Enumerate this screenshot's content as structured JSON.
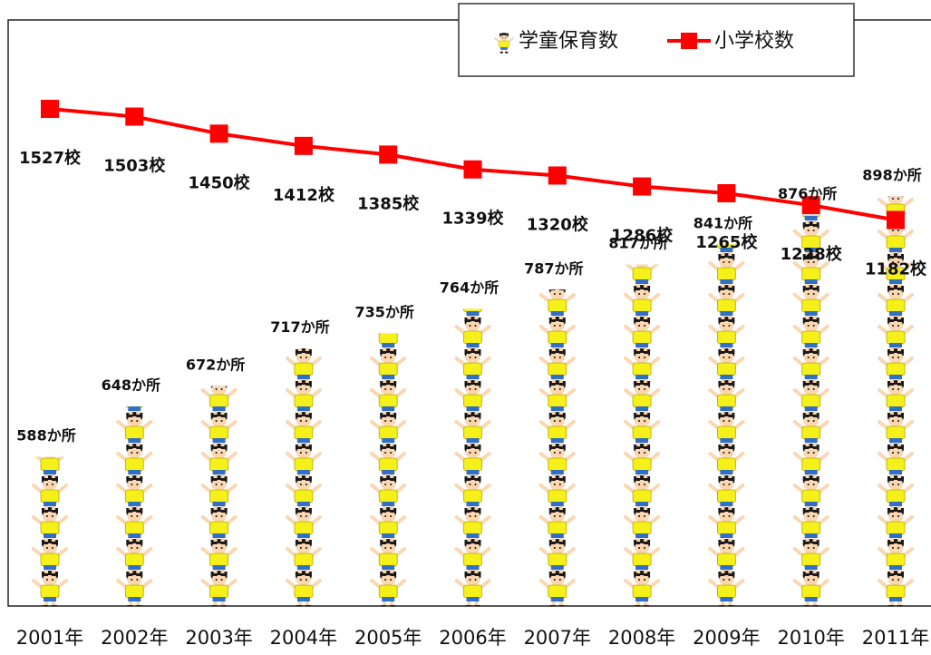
{
  "chart_data": {
    "type": "bar",
    "categories": [
      "2001年",
      "2002年",
      "2003年",
      "2004年",
      "2005年",
      "2006年",
      "2007年",
      "2008年",
      "2009年",
      "2010年",
      "2011年"
    ],
    "series": [
      {
        "name": "学童保育数",
        "kind": "pictograph-bar",
        "values": [
          588,
          648,
          672,
          717,
          735,
          764,
          787,
          817,
          841,
          876,
          898
        ],
        "labels": [
          "588か所",
          "648か所",
          "672か所",
          "717か所",
          "735か所",
          "764か所",
          "787か所",
          "817か所",
          "841か所",
          "876か所",
          "898か所"
        ],
        "icon": "child-icon"
      },
      {
        "name": "小学校数",
        "kind": "line",
        "values": [
          1527,
          1503,
          1450,
          1412,
          1385,
          1339,
          1320,
          1286,
          1265,
          1228,
          1182
        ],
        "labels": [
          "1527校",
          "1503校",
          "1450校",
          "1412校",
          "1385校",
          "1339校",
          "1320校",
          "1286校",
          "1265校",
          "1228校",
          "1182校"
        ],
        "color": "#ff0000"
      }
    ],
    "legend_position": "top-right",
    "grid": false
  },
  "colors": {
    "line": "#ff0000",
    "child_shirt": "#f5ef1a",
    "child_pants": "#2f6fc4",
    "child_hair": "#1a1a1a",
    "child_skin": "#fbd6b0"
  }
}
